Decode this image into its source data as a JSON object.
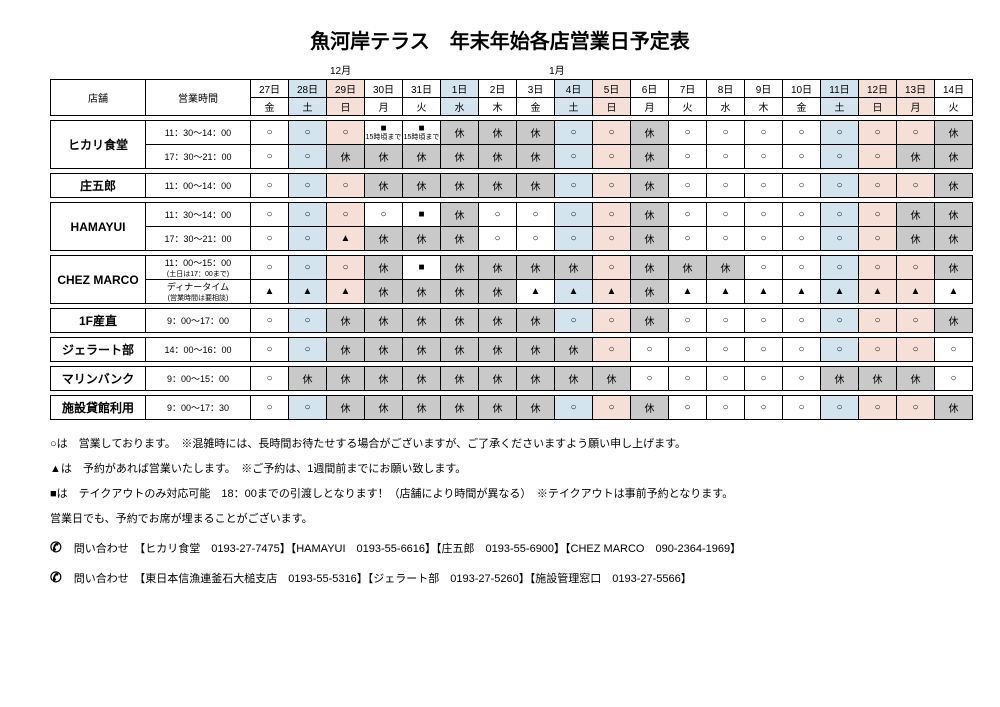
{
  "title": "魚河岸テラス　年末年始各店営業日予定表",
  "month_labels": {
    "dec": "12月",
    "jan": "1月"
  },
  "headers": {
    "store": "店舗",
    "hours": "営業時間"
  },
  "colors": {
    "blue": "#d4e4ef",
    "pink": "#f6dfd6",
    "gray": "#c9c9c9",
    "white": "#ffffff"
  },
  "symbols": {
    "open": "○",
    "closed": "休",
    "takeout": "■",
    "reserve": "▲"
  },
  "days": [
    {
      "date": "27日",
      "dow": "金",
      "color": "white"
    },
    {
      "date": "28日",
      "dow": "土",
      "color": "blue"
    },
    {
      "date": "29日",
      "dow": "日",
      "color": "pink"
    },
    {
      "date": "30日",
      "dow": "月",
      "color": "white"
    },
    {
      "date": "31日",
      "dow": "火",
      "color": "white"
    },
    {
      "date": "1日",
      "dow": "水",
      "color": "blue"
    },
    {
      "date": "2日",
      "dow": "木",
      "color": "white"
    },
    {
      "date": "3日",
      "dow": "金",
      "color": "white"
    },
    {
      "date": "4日",
      "dow": "土",
      "color": "blue"
    },
    {
      "date": "5日",
      "dow": "日",
      "color": "pink"
    },
    {
      "date": "6日",
      "dow": "月",
      "color": "white"
    },
    {
      "date": "7日",
      "dow": "火",
      "color": "white"
    },
    {
      "date": "8日",
      "dow": "水",
      "color": "white"
    },
    {
      "date": "9日",
      "dow": "木",
      "color": "white"
    },
    {
      "date": "10日",
      "dow": "金",
      "color": "white"
    },
    {
      "date": "11日",
      "dow": "土",
      "color": "blue"
    },
    {
      "date": "12日",
      "dow": "日",
      "color": "pink"
    },
    {
      "date": "13日",
      "dow": "月",
      "color": "pink"
    },
    {
      "date": "14日",
      "dow": "火",
      "color": "white"
    }
  ],
  "stores": [
    {
      "name": "ヒカリ食堂",
      "rows": [
        {
          "hours": "11：30～14：00",
          "cells": [
            "○",
            "○",
            "○",
            {
              "s": "■",
              "note": "15時頃まで"
            },
            {
              "s": "■",
              "note": "15時頃まで"
            },
            "休",
            "休",
            "休",
            "○",
            "○",
            "休",
            "○",
            "○",
            "○",
            "○",
            "○",
            "○",
            "○",
            "休"
          ]
        },
        {
          "hours": "17：30～21：00",
          "cells": [
            "○",
            "○",
            "休",
            "休",
            "休",
            "休",
            "休",
            "休",
            "○",
            "○",
            "休",
            "○",
            "○",
            "○",
            "○",
            "○",
            "○",
            "休",
            "休"
          ]
        }
      ]
    },
    {
      "name": "庄五郎",
      "rows": [
        {
          "hours": "11：00～14：00",
          "cells": [
            "○",
            "○",
            "○",
            "休",
            "休",
            "休",
            "休",
            "休",
            "○",
            "○",
            "休",
            "○",
            "○",
            "○",
            "○",
            "○",
            "○",
            "○",
            "休"
          ]
        }
      ]
    },
    {
      "name": "HAMAYUI",
      "rows": [
        {
          "hours": "11：30～14：00",
          "cells": [
            "○",
            "○",
            "○",
            "○",
            "■",
            "休",
            "○",
            "○",
            "○",
            "○",
            "休",
            "○",
            "○",
            "○",
            "○",
            "○",
            "○",
            "休",
            "休"
          ]
        },
        {
          "hours": "17：30～21：00",
          "cells": [
            "○",
            "○",
            "▲",
            "休",
            "休",
            "休",
            "○",
            "○",
            "○",
            "○",
            "休",
            "○",
            "○",
            "○",
            "○",
            "○",
            "○",
            "休",
            "休"
          ]
        }
      ]
    },
    {
      "name": "CHEZ MARCO",
      "rows": [
        {
          "hours": "11：00～15：00\n(土日は17：00まで)",
          "cells": [
            "○",
            "○",
            "○",
            "休",
            "■",
            "休",
            "休",
            "休",
            "休",
            "○",
            "休",
            "休",
            "休",
            "○",
            "○",
            "○",
            "○",
            "○",
            "休"
          ]
        },
        {
          "hours": "ディナータイム\n(営業時間は要相談)",
          "cells": [
            "▲",
            "▲",
            "▲",
            "休",
            "休",
            "休",
            "休",
            "▲",
            "▲",
            "▲",
            "休",
            "▲",
            "▲",
            "▲",
            "▲",
            "▲",
            "▲",
            "▲",
            "▲"
          ]
        }
      ]
    },
    {
      "name": "1F産直",
      "rows": [
        {
          "hours": "9：00～17：00",
          "cells": [
            "○",
            "○",
            "休",
            "休",
            "休",
            "休",
            "休",
            "休",
            "○",
            "○",
            "休",
            "○",
            "○",
            "○",
            "○",
            "○",
            "○",
            "○",
            "休"
          ]
        }
      ]
    },
    {
      "name": "ジェラート部",
      "rows": [
        {
          "hours": "14：00～16：00",
          "cells": [
            "○",
            "○",
            "休",
            "休",
            "休",
            "休",
            "休",
            "休",
            "休",
            "○",
            "○",
            "○",
            "○",
            "○",
            "○",
            "○",
            "○",
            "○",
            "○"
          ]
        }
      ]
    },
    {
      "name": "マリンバンク",
      "rows": [
        {
          "hours": "9：00～15：00",
          "cells": [
            "○",
            "休",
            "休",
            "休",
            "休",
            "休",
            "休",
            "休",
            "休",
            "休",
            "○",
            "○",
            "○",
            "○",
            "○",
            "休",
            "休",
            "休",
            "○"
          ]
        }
      ]
    },
    {
      "name": "施設貸館利用",
      "rows": [
        {
          "hours": "9：00～17：30",
          "cells": [
            "○",
            "○",
            "休",
            "休",
            "休",
            "休",
            "休",
            "休",
            "○",
            "○",
            "休",
            "○",
            "○",
            "○",
            "○",
            "○",
            "○",
            "○",
            "休"
          ]
        }
      ]
    }
  ],
  "notes": [
    "○は　営業しております。　※混雑時には、長時間お待たせする場合がございますが、ご了承くださいますよう願い申し上げます。",
    "▲は　予約があれば営業いたします。　※ご予約は、1週間前までにお願い致します。",
    "■は　テイクアウトのみ対応可能　18：00までの引渡しとなります！（店舗により時間が異なる）　※テイクアウトは事前予約となります。",
    "営業日でも、予約でお席が埋まることがございます。"
  ],
  "contacts": [
    "問い合わせ　【ヒカリ食堂　0193-27-7475】【HAMAYUI　0193-55-6616】【庄五郎　0193-55-6900】【CHEZ MARCO　090-2364-1969】",
    "問い合わせ　【東日本信漁連釜石大槌支店　0193-55-5316】【ジェラート部　0193-27-5260】【施設管理窓口　0193-27-5566】"
  ]
}
